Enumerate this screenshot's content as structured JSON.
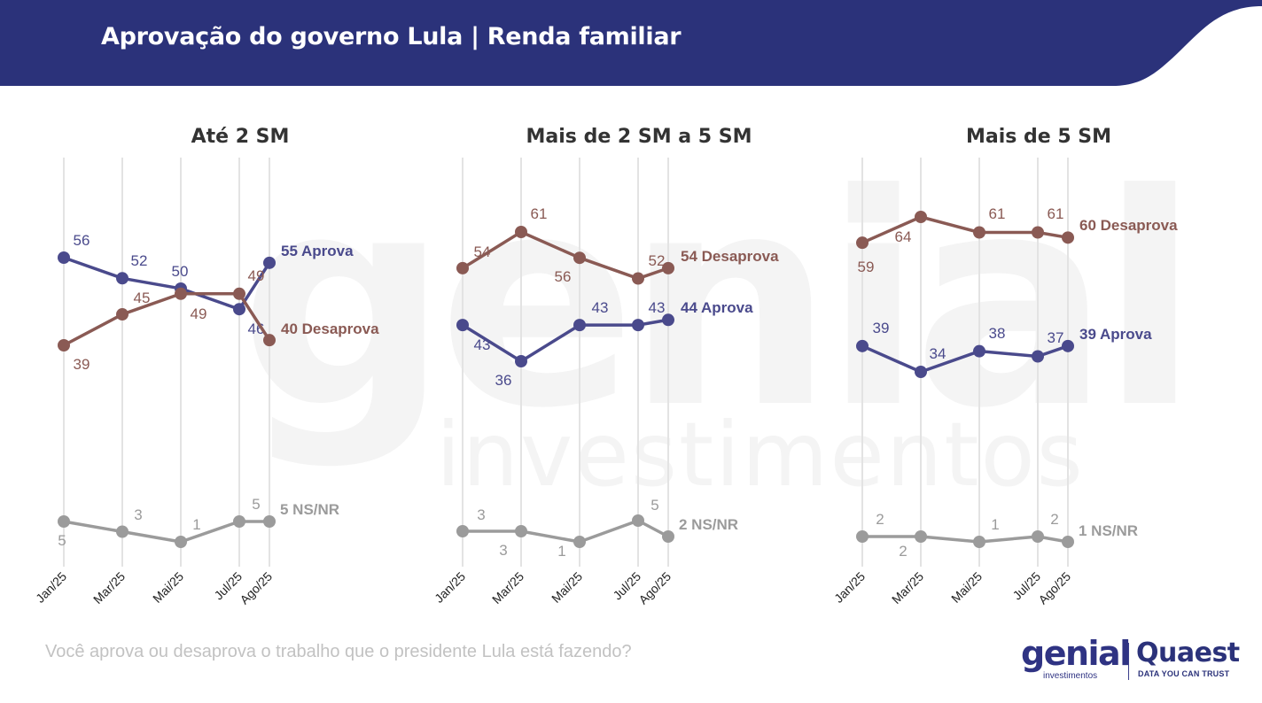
{
  "header": {
    "title": "Aprovação do governo Lula | Renda familiar"
  },
  "footer": {
    "question": "Você aprova ou desaprova o trabalho que o presidente Lula está fazendo?"
  },
  "logos": {
    "genial_word": "genial",
    "genial_sub": "investimentos",
    "quaest_word": "Quaest",
    "quaest_tagline": "DATA YOU CAN TRUST"
  },
  "colors": {
    "header_bg": "#2b327a",
    "aprova": "#4a4a8c",
    "desaprova": "#8a5a54",
    "nsnr": "#9b9b9b",
    "gridline": "#e3e3e3",
    "watermark": "#f3f3f3"
  },
  "chart_data": [
    {
      "type": "line",
      "title": "Até 2 SM",
      "x": [
        "Jan/25",
        "Mar/25",
        "Mai/25",
        "Jul/25",
        "Ago/25"
      ],
      "series": [
        {
          "name": "Aprova",
          "values": [
            56,
            52,
            50,
            46,
            55
          ],
          "end_label": "55 Aprova"
        },
        {
          "name": "Desaprova",
          "values": [
            39,
            45,
            49,
            49,
            40
          ],
          "end_label": "40 Desaprova"
        },
        {
          "name": "NS/NR",
          "values": [
            5,
            3,
            1,
            5,
            5
          ],
          "end_label": "5 NS/NR"
        }
      ]
    },
    {
      "type": "line",
      "title": "Mais de 2 SM a 5 SM",
      "x": [
        "Jan/25",
        "Mar/25",
        "Mai/25",
        "Jul/25",
        "Ago/25"
      ],
      "series": [
        {
          "name": "Aprova",
          "values": [
            43,
            36,
            43,
            43,
            44
          ],
          "end_label": "44 Aprova"
        },
        {
          "name": "Desaprova",
          "values": [
            54,
            61,
            56,
            52,
            54
          ],
          "end_label": "54 Desaprova"
        },
        {
          "name": "NS/NR",
          "values": [
            3,
            3,
            1,
            5,
            2
          ],
          "end_label": "2 NS/NR"
        }
      ]
    },
    {
      "type": "line",
      "title": "Mais de 5 SM",
      "x": [
        "Jan/25",
        "Mar/25",
        "Mai/25",
        "Jul/25",
        "Ago/25"
      ],
      "series": [
        {
          "name": "Aprova",
          "values": [
            39,
            34,
            38,
            37,
            39
          ],
          "end_label": "39 Aprova"
        },
        {
          "name": "Desaprova",
          "values": [
            59,
            64,
            61,
            61,
            60
          ],
          "end_label": "60 Desaprova"
        },
        {
          "name": "NS/NR",
          "values": [
            2,
            2,
            1,
            2,
            1
          ],
          "end_label": "1 NS/NR"
        }
      ]
    }
  ]
}
